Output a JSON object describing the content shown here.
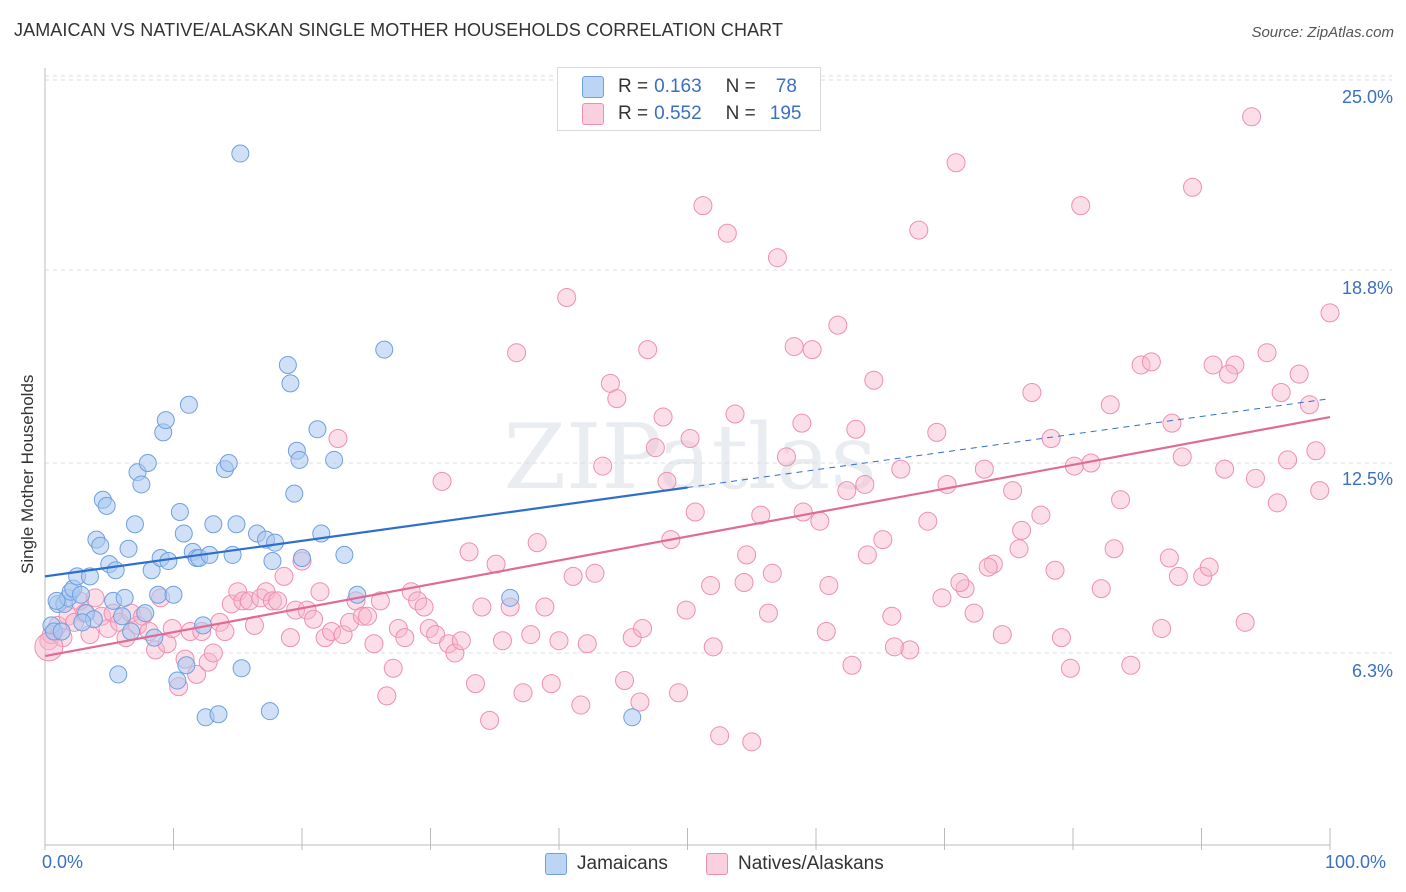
{
  "title": "JAMAICAN VS NATIVE/ALASKAN SINGLE MOTHER HOUSEHOLDS CORRELATION CHART",
  "source": "Source: ZipAtlas.com",
  "watermark": "ZIPatlas",
  "legend": {
    "r_label": "R =",
    "n_label": "N =",
    "rows": [
      {
        "r": "0.163",
        "n": "78",
        "color": "#a9c8f0"
      },
      {
        "r": "0.552",
        "n": "195",
        "color": "#f6b6cb"
      }
    ]
  },
  "bottom_legend": [
    {
      "label": "Jamaicans",
      "color": "#a9c8f0"
    },
    {
      "label": "Natives/Alaskans",
      "color": "#f6b6cb"
    }
  ],
  "chart_data": {
    "type": "scatter",
    "title": "JAMAICAN VS NATIVE/ALASKAN SINGLE MOTHER HOUSEHOLDS CORRELATION CHART",
    "xlabel": "",
    "ylabel": "Single Mother Households",
    "xlim": [
      0,
      100
    ],
    "ylim": [
      0,
      26.3
    ],
    "x_tick_labels": [
      "0.0%",
      "100.0%"
    ],
    "y_ticks": [
      6.3,
      12.5,
      18.8,
      25.0
    ],
    "y_tick_labels": [
      "6.3%",
      "12.5%",
      "18.8%",
      "25.0%"
    ],
    "grid": "horizontal dashed",
    "legend_position": "top-center",
    "colors": {
      "jamaicans": "#6fa0e0",
      "natives": "#ef8fb0",
      "jam_line": "#2f6fcc",
      "nat_line": "#e06b96",
      "tick_text": "#3a6fc4"
    },
    "series": [
      {
        "name": "Jamaicans",
        "R": 0.163,
        "N": 78,
        "trend": {
          "x0": 0,
          "y0": 8.8,
          "x1": 50,
          "y1": 11.7,
          "dashed_to_x": 100,
          "dashed_to_y": 14.6
        },
        "points": [
          [
            0.5,
            7.2
          ],
          [
            0.7,
            7.0
          ],
          [
            1.0,
            7.9
          ],
          [
            1.5,
            7.9
          ],
          [
            1.8,
            8.1
          ],
          [
            2.0,
            8.3
          ],
          [
            2.2,
            8.4
          ],
          [
            2.5,
            8.8
          ],
          [
            2.8,
            8.2
          ],
          [
            3.2,
            7.6
          ],
          [
            3.5,
            8.8
          ],
          [
            3.8,
            7.4
          ],
          [
            4.0,
            10.0
          ],
          [
            4.3,
            9.8
          ],
          [
            4.5,
            11.3
          ],
          [
            4.8,
            11.1
          ],
          [
            5.0,
            9.2
          ],
          [
            5.3,
            8.0
          ],
          [
            5.5,
            9.0
          ],
          [
            5.7,
            5.6
          ],
          [
            6.0,
            7.5
          ],
          [
            6.2,
            8.1
          ],
          [
            6.5,
            9.7
          ],
          [
            6.7,
            7.0
          ],
          [
            7.0,
            10.5
          ],
          [
            7.2,
            12.2
          ],
          [
            7.5,
            11.8
          ],
          [
            7.8,
            7.6
          ],
          [
            8.0,
            12.5
          ],
          [
            8.3,
            9.0
          ],
          [
            8.5,
            6.8
          ],
          [
            8.8,
            8.2
          ],
          [
            9.0,
            9.4
          ],
          [
            9.2,
            13.5
          ],
          [
            9.4,
            13.9
          ],
          [
            9.6,
            9.3
          ],
          [
            10.0,
            8.2
          ],
          [
            10.3,
            5.4
          ],
          [
            10.5,
            10.9
          ],
          [
            10.8,
            10.2
          ],
          [
            11.0,
            5.9
          ],
          [
            11.2,
            14.4
          ],
          [
            11.5,
            9.6
          ],
          [
            11.8,
            9.4
          ],
          [
            12.0,
            9.4
          ],
          [
            12.3,
            7.2
          ],
          [
            12.5,
            4.2
          ],
          [
            12.8,
            9.5
          ],
          [
            13.1,
            10.5
          ],
          [
            13.5,
            4.3
          ],
          [
            14.0,
            12.3
          ],
          [
            14.3,
            12.5
          ],
          [
            14.6,
            9.5
          ],
          [
            14.9,
            10.5
          ],
          [
            15.2,
            22.6
          ],
          [
            15.3,
            5.8
          ],
          [
            16.5,
            10.2
          ],
          [
            17.2,
            10.0
          ],
          [
            17.5,
            4.4
          ],
          [
            17.7,
            9.3
          ],
          [
            17.9,
            9.9
          ],
          [
            18.9,
            15.7
          ],
          [
            19.1,
            15.1
          ],
          [
            19.4,
            11.5
          ],
          [
            19.6,
            12.9
          ],
          [
            19.8,
            12.6
          ],
          [
            20.0,
            9.4
          ],
          [
            21.2,
            13.6
          ],
          [
            21.5,
            10.2
          ],
          [
            22.5,
            12.6
          ],
          [
            23.3,
            9.5
          ],
          [
            24.3,
            8.2
          ],
          [
            26.4,
            16.2
          ],
          [
            36.2,
            8.1
          ],
          [
            45.7,
            4.2
          ],
          [
            1.3,
            7.0
          ],
          [
            2.9,
            7.3
          ],
          [
            0.9,
            8.0
          ]
        ]
      },
      {
        "name": "Natives/Alaskans",
        "R": 0.552,
        "N": 195,
        "trend": {
          "x0": 0,
          "y0": 6.2,
          "x1": 100,
          "y1": 14.0
        },
        "points": [
          [
            0.3,
            6.7
          ],
          [
            0.5,
            6.9
          ],
          [
            1.0,
            7.2
          ],
          [
            1.4,
            6.8
          ],
          [
            1.8,
            7.5
          ],
          [
            2.3,
            7.3
          ],
          [
            2.7,
            8.0
          ],
          [
            3.1,
            7.6
          ],
          [
            3.5,
            6.9
          ],
          [
            3.9,
            8.1
          ],
          [
            4.4,
            7.5
          ],
          [
            4.9,
            7.1
          ],
          [
            5.3,
            7.6
          ],
          [
            5.8,
            7.3
          ],
          [
            6.3,
            6.8
          ],
          [
            6.7,
            7.6
          ],
          [
            7.2,
            7.2
          ],
          [
            7.6,
            7.5
          ],
          [
            8.1,
            7.0
          ],
          [
            8.6,
            6.4
          ],
          [
            9.0,
            8.1
          ],
          [
            9.5,
            6.6
          ],
          [
            9.9,
            7.1
          ],
          [
            10.4,
            5.2
          ],
          [
            10.9,
            6.1
          ],
          [
            11.3,
            7.0
          ],
          [
            11.8,
            5.6
          ],
          [
            12.2,
            7.0
          ],
          [
            12.7,
            6.0
          ],
          [
            13.1,
            6.3
          ],
          [
            13.6,
            7.3
          ],
          [
            14.0,
            7.0
          ],
          [
            14.5,
            7.9
          ],
          [
            15.0,
            8.3
          ],
          [
            15.4,
            8.0
          ],
          [
            15.9,
            8.0
          ],
          [
            16.3,
            7.2
          ],
          [
            16.8,
            8.1
          ],
          [
            17.2,
            8.3
          ],
          [
            17.7,
            8.0
          ],
          [
            18.1,
            8.0
          ],
          [
            18.6,
            8.8
          ],
          [
            19.1,
            6.8
          ],
          [
            19.5,
            7.7
          ],
          [
            20.0,
            9.3
          ],
          [
            20.4,
            7.7
          ],
          [
            20.9,
            7.4
          ],
          [
            21.4,
            8.3
          ],
          [
            21.8,
            6.8
          ],
          [
            22.3,
            7.0
          ],
          [
            22.8,
            13.3
          ],
          [
            23.2,
            6.9
          ],
          [
            23.7,
            7.3
          ],
          [
            24.2,
            8.0
          ],
          [
            24.7,
            7.5
          ],
          [
            25.1,
            7.5
          ],
          [
            25.6,
            6.6
          ],
          [
            26.1,
            8.0
          ],
          [
            26.6,
            4.9
          ],
          [
            27.1,
            5.8
          ],
          [
            27.5,
            7.1
          ],
          [
            28.0,
            6.8
          ],
          [
            28.5,
            8.3
          ],
          [
            29.0,
            8.0
          ],
          [
            29.5,
            7.8
          ],
          [
            29.9,
            7.1
          ],
          [
            30.4,
            6.9
          ],
          [
            30.9,
            11.9
          ],
          [
            31.4,
            6.6
          ],
          [
            31.9,
            6.3
          ],
          [
            32.4,
            6.7
          ],
          [
            33.0,
            9.6
          ],
          [
            33.5,
            5.3
          ],
          [
            34.0,
            7.8
          ],
          [
            34.6,
            4.1
          ],
          [
            35.1,
            9.2
          ],
          [
            35.6,
            6.7
          ],
          [
            36.2,
            7.8
          ],
          [
            36.7,
            16.1
          ],
          [
            37.2,
            5.0
          ],
          [
            37.8,
            6.9
          ],
          [
            38.3,
            9.9
          ],
          [
            38.9,
            7.8
          ],
          [
            39.4,
            5.3
          ],
          [
            40.0,
            6.7
          ],
          [
            40.6,
            17.9
          ],
          [
            41.1,
            8.8
          ],
          [
            41.7,
            4.6
          ],
          [
            42.2,
            6.6
          ],
          [
            42.8,
            8.9
          ],
          [
            43.4,
            12.4
          ],
          [
            44.0,
            15.1
          ],
          [
            44.5,
            14.6
          ],
          [
            45.1,
            5.4
          ],
          [
            45.7,
            6.8
          ],
          [
            46.3,
            4.7
          ],
          [
            46.9,
            16.2
          ],
          [
            47.5,
            13.0
          ],
          [
            48.1,
            14.0
          ],
          [
            48.7,
            10.0
          ],
          [
            49.3,
            5.0
          ],
          [
            49.9,
            7.7
          ],
          [
            50.6,
            10.9
          ],
          [
            51.2,
            20.9
          ],
          [
            51.8,
            8.5
          ],
          [
            52.5,
            3.6
          ],
          [
            53.1,
            20.0
          ],
          [
            53.7,
            14.1
          ],
          [
            54.4,
            8.6
          ],
          [
            55.0,
            3.4
          ],
          [
            55.7,
            10.8
          ],
          [
            56.3,
            7.6
          ],
          [
            57.0,
            19.2
          ],
          [
            57.7,
            12.7
          ],
          [
            58.3,
            16.3
          ],
          [
            59.0,
            10.9
          ],
          [
            59.7,
            16.2
          ],
          [
            60.3,
            10.6
          ],
          [
            61.0,
            8.5
          ],
          [
            61.7,
            17.0
          ],
          [
            62.4,
            11.6
          ],
          [
            63.1,
            13.6
          ],
          [
            63.8,
            11.8
          ],
          [
            64.5,
            15.2
          ],
          [
            65.2,
            10.0
          ],
          [
            65.9,
            7.5
          ],
          [
            66.6,
            12.3
          ],
          [
            67.3,
            6.4
          ],
          [
            68.0,
            20.1
          ],
          [
            68.7,
            10.6
          ],
          [
            69.4,
            13.5
          ],
          [
            70.2,
            11.8
          ],
          [
            70.9,
            22.3
          ],
          [
            71.6,
            8.4
          ],
          [
            72.3,
            7.6
          ],
          [
            73.1,
            12.3
          ],
          [
            73.8,
            9.2
          ],
          [
            74.5,
            6.9
          ],
          [
            75.3,
            11.6
          ],
          [
            76.0,
            10.3
          ],
          [
            76.8,
            14.8
          ],
          [
            77.5,
            10.8
          ],
          [
            78.3,
            13.3
          ],
          [
            79.1,
            6.8
          ],
          [
            79.8,
            5.8
          ],
          [
            80.6,
            20.9
          ],
          [
            81.4,
            12.5
          ],
          [
            82.2,
            8.4
          ],
          [
            82.9,
            14.4
          ],
          [
            83.7,
            11.3
          ],
          [
            84.5,
            5.9
          ],
          [
            85.3,
            15.7
          ],
          [
            86.1,
            15.8
          ],
          [
            86.9,
            7.1
          ],
          [
            87.7,
            13.8
          ],
          [
            88.5,
            12.7
          ],
          [
            89.3,
            21.5
          ],
          [
            90.1,
            8.8
          ],
          [
            90.9,
            15.7
          ],
          [
            91.8,
            12.3
          ],
          [
            92.6,
            15.7
          ],
          [
            93.4,
            7.3
          ],
          [
            94.2,
            12.0
          ],
          [
            95.1,
            16.1
          ],
          [
            95.9,
            11.2
          ],
          [
            96.7,
            12.6
          ],
          [
            97.6,
            15.4
          ],
          [
            98.4,
            14.4
          ],
          [
            99.2,
            11.6
          ],
          [
            100.0,
            17.4
          ],
          [
            87.5,
            9.4
          ],
          [
            92.1,
            15.4
          ],
          [
            96.2,
            14.8
          ],
          [
            98.9,
            12.9
          ],
          [
            93.9,
            23.8
          ],
          [
            90.6,
            9.1
          ],
          [
            88.2,
            8.8
          ],
          [
            83.2,
            9.7
          ],
          [
            80.1,
            12.4
          ],
          [
            78.6,
            9.0
          ],
          [
            75.8,
            9.7
          ],
          [
            73.4,
            9.1
          ],
          [
            71.2,
            8.6
          ],
          [
            69.8,
            8.1
          ],
          [
            66.1,
            6.5
          ],
          [
            64.0,
            9.5
          ],
          [
            62.8,
            5.9
          ],
          [
            60.8,
            7.0
          ],
          [
            58.9,
            13.8
          ],
          [
            56.6,
            8.9
          ],
          [
            54.6,
            9.5
          ],
          [
            52.0,
            6.5
          ],
          [
            50.2,
            13.3
          ],
          [
            48.4,
            11.9
          ],
          [
            46.5,
            7.1
          ]
        ]
      }
    ]
  }
}
